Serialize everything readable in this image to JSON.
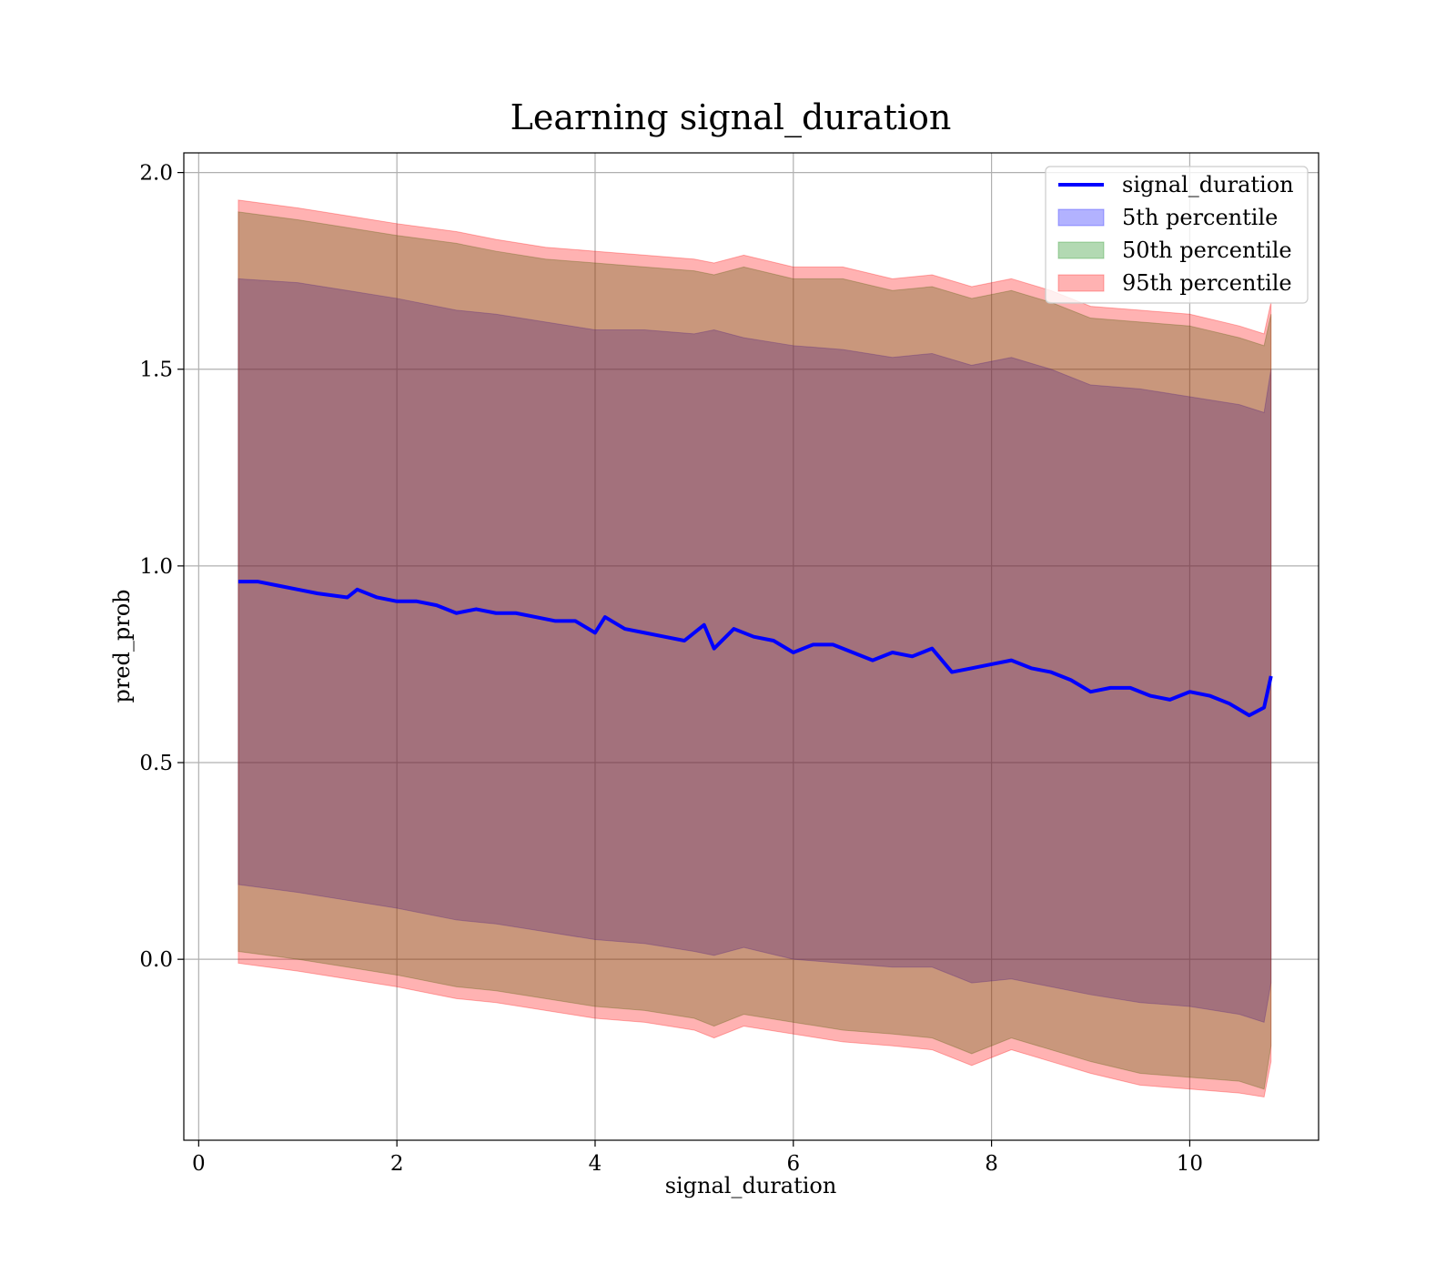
{
  "chart_data": {
    "type": "area",
    "title": "Learning signal_duration",
    "xlabel": "signal_duration",
    "ylabel": "pred_prob",
    "xlim": [
      -0.15,
      11.3
    ],
    "ylim": [
      -0.46,
      2.05
    ],
    "xticks": [
      0,
      2,
      4,
      6,
      8,
      10
    ],
    "xtick_labels": [
      "0",
      "2",
      "4",
      "6",
      "8",
      "10"
    ],
    "yticks": [
      0.0,
      0.5,
      1.0,
      1.5,
      2.0
    ],
    "ytick_labels": [
      "0.0",
      "0.5",
      "1.0",
      "1.5",
      "2.0"
    ],
    "grid": true,
    "legend_position": "top-right",
    "series": [
      {
        "name": "signal_duration",
        "kind": "line",
        "color": "#0000ff",
        "x": [
          0.4,
          0.6,
          0.8,
          1.0,
          1.2,
          1.5,
          1.6,
          1.8,
          2.0,
          2.2,
          2.4,
          2.6,
          2.8,
          3.0,
          3.2,
          3.4,
          3.6,
          3.8,
          4.0,
          4.1,
          4.3,
          4.5,
          4.7,
          4.9,
          5.1,
          5.2,
          5.4,
          5.6,
          5.8,
          6.0,
          6.2,
          6.4,
          6.6,
          6.8,
          7.0,
          7.2,
          7.4,
          7.6,
          7.8,
          8.0,
          8.2,
          8.4,
          8.6,
          8.8,
          9.0,
          9.2,
          9.4,
          9.6,
          9.8,
          10.0,
          10.2,
          10.4,
          10.6,
          10.75,
          10.82
        ],
        "values": [
          0.96,
          0.96,
          0.95,
          0.94,
          0.93,
          0.92,
          0.94,
          0.92,
          0.91,
          0.91,
          0.9,
          0.88,
          0.89,
          0.88,
          0.88,
          0.87,
          0.86,
          0.86,
          0.83,
          0.87,
          0.84,
          0.83,
          0.82,
          0.81,
          0.85,
          0.79,
          0.84,
          0.82,
          0.81,
          0.78,
          0.8,
          0.8,
          0.78,
          0.76,
          0.78,
          0.77,
          0.79,
          0.73,
          0.74,
          0.75,
          0.76,
          0.74,
          0.73,
          0.71,
          0.68,
          0.69,
          0.69,
          0.67,
          0.66,
          0.68,
          0.67,
          0.65,
          0.62,
          0.64,
          0.72
        ]
      },
      {
        "name": "5th percentile",
        "kind": "band",
        "color": "#0000ff",
        "x": [
          0.4,
          1.0,
          1.5,
          2.0,
          2.6,
          3.0,
          3.5,
          4.0,
          4.5,
          5.0,
          5.2,
          5.5,
          6.0,
          6.5,
          7.0,
          7.4,
          7.8,
          8.2,
          8.6,
          9.0,
          9.5,
          10.0,
          10.5,
          10.75,
          10.82
        ],
        "lower": [
          0.19,
          0.17,
          0.15,
          0.13,
          0.1,
          0.09,
          0.07,
          0.05,
          0.04,
          0.02,
          0.01,
          0.03,
          0.0,
          -0.01,
          -0.02,
          -0.02,
          -0.06,
          -0.05,
          -0.07,
          -0.09,
          -0.11,
          -0.12,
          -0.14,
          -0.16,
          -0.06
        ],
        "upper": [
          1.73,
          1.72,
          1.7,
          1.68,
          1.65,
          1.64,
          1.62,
          1.6,
          1.6,
          1.59,
          1.6,
          1.58,
          1.56,
          1.55,
          1.53,
          1.54,
          1.51,
          1.53,
          1.5,
          1.46,
          1.45,
          1.43,
          1.41,
          1.39,
          1.5
        ]
      },
      {
        "name": "50th percentile",
        "kind": "band",
        "color": "#008000",
        "x": [
          0.4,
          1.0,
          1.5,
          2.0,
          2.6,
          3.0,
          3.5,
          4.0,
          4.5,
          5.0,
          5.2,
          5.5,
          6.0,
          6.5,
          7.0,
          7.4,
          7.8,
          8.2,
          8.6,
          9.0,
          9.5,
          10.0,
          10.5,
          10.75,
          10.82
        ],
        "lower": [
          0.02,
          0.0,
          -0.02,
          -0.04,
          -0.07,
          -0.08,
          -0.1,
          -0.12,
          -0.13,
          -0.15,
          -0.17,
          -0.14,
          -0.16,
          -0.18,
          -0.19,
          -0.2,
          -0.24,
          -0.2,
          -0.23,
          -0.26,
          -0.29,
          -0.3,
          -0.31,
          -0.33,
          -0.22
        ],
        "upper": [
          1.9,
          1.88,
          1.86,
          1.84,
          1.82,
          1.8,
          1.78,
          1.77,
          1.76,
          1.75,
          1.74,
          1.76,
          1.73,
          1.73,
          1.7,
          1.71,
          1.68,
          1.7,
          1.67,
          1.63,
          1.62,
          1.61,
          1.58,
          1.56,
          1.64
        ]
      },
      {
        "name": "95th percentile",
        "kind": "band",
        "color": "#ff0000",
        "x": [
          0.4,
          1.0,
          1.5,
          2.0,
          2.6,
          3.0,
          3.5,
          4.0,
          4.5,
          5.0,
          5.2,
          5.5,
          6.0,
          6.5,
          7.0,
          7.4,
          7.8,
          8.2,
          8.6,
          9.0,
          9.5,
          10.0,
          10.5,
          10.75,
          10.82
        ],
        "lower": [
          -0.01,
          -0.03,
          -0.05,
          -0.07,
          -0.1,
          -0.11,
          -0.13,
          -0.15,
          -0.16,
          -0.18,
          -0.2,
          -0.17,
          -0.19,
          -0.21,
          -0.22,
          -0.23,
          -0.27,
          -0.23,
          -0.26,
          -0.29,
          -0.32,
          -0.33,
          -0.34,
          -0.35,
          -0.26
        ],
        "upper": [
          1.93,
          1.91,
          1.89,
          1.87,
          1.85,
          1.83,
          1.81,
          1.8,
          1.79,
          1.78,
          1.77,
          1.79,
          1.76,
          1.76,
          1.73,
          1.74,
          1.71,
          1.73,
          1.7,
          1.66,
          1.65,
          1.64,
          1.61,
          1.59,
          1.67
        ]
      }
    ]
  }
}
